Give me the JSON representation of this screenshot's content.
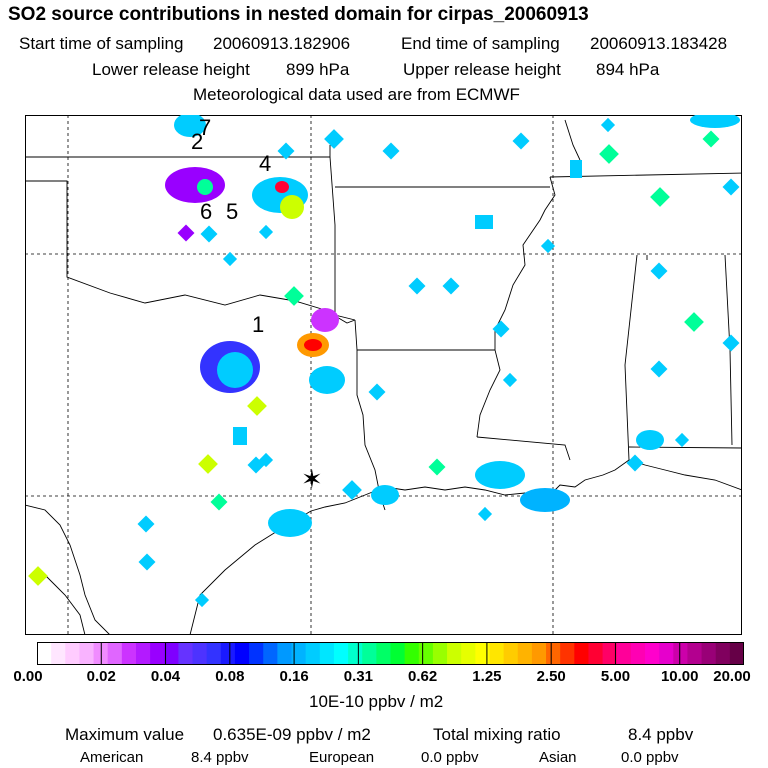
{
  "title": "SO2 source contributions in nested domain for cirpas_20060913",
  "sampling": {
    "start_label": "Start time of sampling",
    "start_value": "20060913.182906",
    "end_label": "End time of sampling",
    "end_value": "20060913.183428"
  },
  "release": {
    "lower_label": "Lower release height",
    "lower_value": "899 hPa",
    "upper_label": "Upper release height",
    "upper_value": "894 hPa"
  },
  "met_line": "Meteorological data used are from ECMWF",
  "map": {
    "source_labels": [
      "7",
      "2",
      "4",
      "6",
      "5",
      "1"
    ],
    "receptor_symbol": "✶"
  },
  "colorbar": {
    "ticks": [
      "0.00",
      "0.02",
      "0.04",
      "0.08",
      "0.16",
      "0.31",
      "0.62",
      "1.25",
      "2.50",
      "5.00",
      "10.00",
      "20.00"
    ],
    "colors": [
      "#ffffff",
      "#ffe6ff",
      "#ffccff",
      "#f9b3ff",
      "#f08cff",
      "#e066ff",
      "#cc33ff",
      "#b31aff",
      "#9900ff",
      "#7f00ff",
      "#6633ff",
      "#4d33ff",
      "#3333ff",
      "#1a1aff",
      "#0000ff",
      "#0033ff",
      "#0066ff",
      "#0099ff",
      "#00b3ff",
      "#00ccff",
      "#00e6ff",
      "#00ffff",
      "#00ffcc",
      "#00ff99",
      "#00ff66",
      "#00ff33",
      "#33ff00",
      "#66ff00",
      "#99ff00",
      "#ccff00",
      "#e6ff00",
      "#ffff00",
      "#ffe600",
      "#ffcc00",
      "#ffb300",
      "#ff9900",
      "#ff6600",
      "#ff3300",
      "#ff0000",
      "#ff0033",
      "#ff0066",
      "#ff0099",
      "#ff00b3",
      "#ff00cc",
      "#e600cc",
      "#cc00aa",
      "#b3008f",
      "#990077",
      "#80005e",
      "#660047"
    ],
    "unit": "10E-10 ppbv / m2"
  },
  "summary": {
    "max_label": "Maximum value",
    "max_value": "0.635E-09 ppbv / m2",
    "total_label": "Total mixing ratio",
    "total_value": "8.4 ppbv",
    "american_label": "American",
    "american_value": "8.4 ppbv",
    "european_label": "European",
    "european_value": "0.0 ppbv",
    "asian_label": "Asian",
    "asian_value": "0.0 ppbv"
  }
}
